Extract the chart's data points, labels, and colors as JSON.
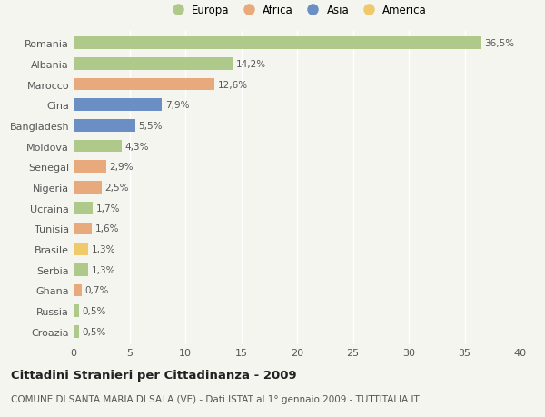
{
  "categories": [
    "Romania",
    "Albania",
    "Marocco",
    "Cina",
    "Bangladesh",
    "Moldova",
    "Senegal",
    "Nigeria",
    "Ucraina",
    "Tunisia",
    "Brasile",
    "Serbia",
    "Ghana",
    "Russia",
    "Croazia"
  ],
  "values": [
    36.5,
    14.2,
    12.6,
    7.9,
    5.5,
    4.3,
    2.9,
    2.5,
    1.7,
    1.6,
    1.3,
    1.3,
    0.7,
    0.5,
    0.5
  ],
  "labels": [
    "36,5%",
    "14,2%",
    "12,6%",
    "7,9%",
    "5,5%",
    "4,3%",
    "2,9%",
    "2,5%",
    "1,7%",
    "1,6%",
    "1,3%",
    "1,3%",
    "0,7%",
    "0,5%",
    "0,5%"
  ],
  "continents": [
    "Europa",
    "Europa",
    "Africa",
    "Asia",
    "Asia",
    "Europa",
    "Africa",
    "Africa",
    "Europa",
    "Africa",
    "America",
    "Europa",
    "Africa",
    "Europa",
    "Europa"
  ],
  "continent_colors": {
    "Europa": "#aec98a",
    "Africa": "#e8aa7c",
    "Asia": "#6b8ec4",
    "America": "#f0c96a"
  },
  "legend_order": [
    "Europa",
    "Africa",
    "Asia",
    "America"
  ],
  "xlim": [
    0,
    40
  ],
  "xticks": [
    0,
    5,
    10,
    15,
    20,
    25,
    30,
    35,
    40
  ],
  "title": "Cittadini Stranieri per Cittadinanza - 2009",
  "subtitle": "COMUNE DI SANTA MARIA DI SALA (VE) - Dati ISTAT al 1° gennaio 2009 - TUTTITALIA.IT",
  "background_color": "#f5f5f0",
  "bar_height": 0.6,
  "grid_color": "#ffffff",
  "label_fontsize": 7.5,
  "ytick_fontsize": 8,
  "xtick_fontsize": 8,
  "title_fontsize": 9.5,
  "subtitle_fontsize": 7.5,
  "legend_fontsize": 8.5
}
